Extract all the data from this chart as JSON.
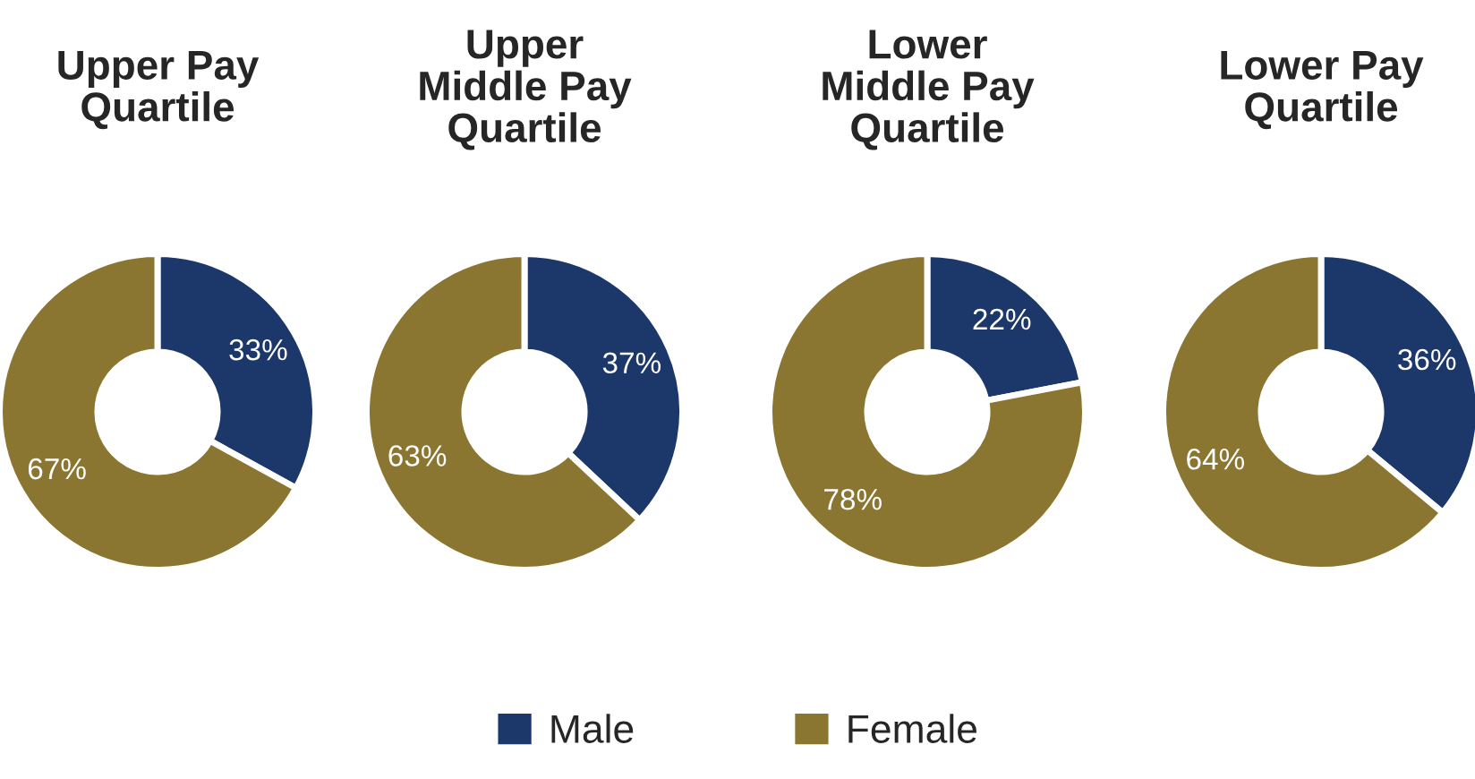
{
  "chart_data": [
    {
      "type": "donut",
      "title": "Upper Pay\nQuartile",
      "categories": [
        "Male",
        "Female"
      ],
      "values": [
        33,
        67
      ],
      "colors": [
        "#1c3769",
        "#8b7631"
      ],
      "value_labels": [
        "33%",
        "67%"
      ],
      "legend": "bottom"
    },
    {
      "type": "donut",
      "title": "Upper\nMiddle Pay\nQuartile",
      "categories": [
        null,
        null
      ],
      "values": [
        37,
        63
      ],
      "colors": [
        "#1c3769",
        "#8b7631"
      ],
      "value_labels": [
        "37%",
        "63%"
      ]
    },
    {
      "type": "donut",
      "title": "Lower\nMiddle Pay\nQuartile",
      "categories": [
        null,
        null
      ],
      "values": [
        22,
        78
      ],
      "colors": [
        "#1c3769",
        "#8b7631"
      ],
      "value_labels": [
        "22%",
        "78%"
      ]
    },
    {
      "type": "donut",
      "title": "Lower Pay\nQuartile",
      "categories": [
        null,
        null
      ],
      "values": [
        36,
        64
      ],
      "colors": [
        "#1c3769",
        "#8b7631"
      ],
      "value_labels": [
        "36%",
        "64%"
      ]
    }
  ]
}
